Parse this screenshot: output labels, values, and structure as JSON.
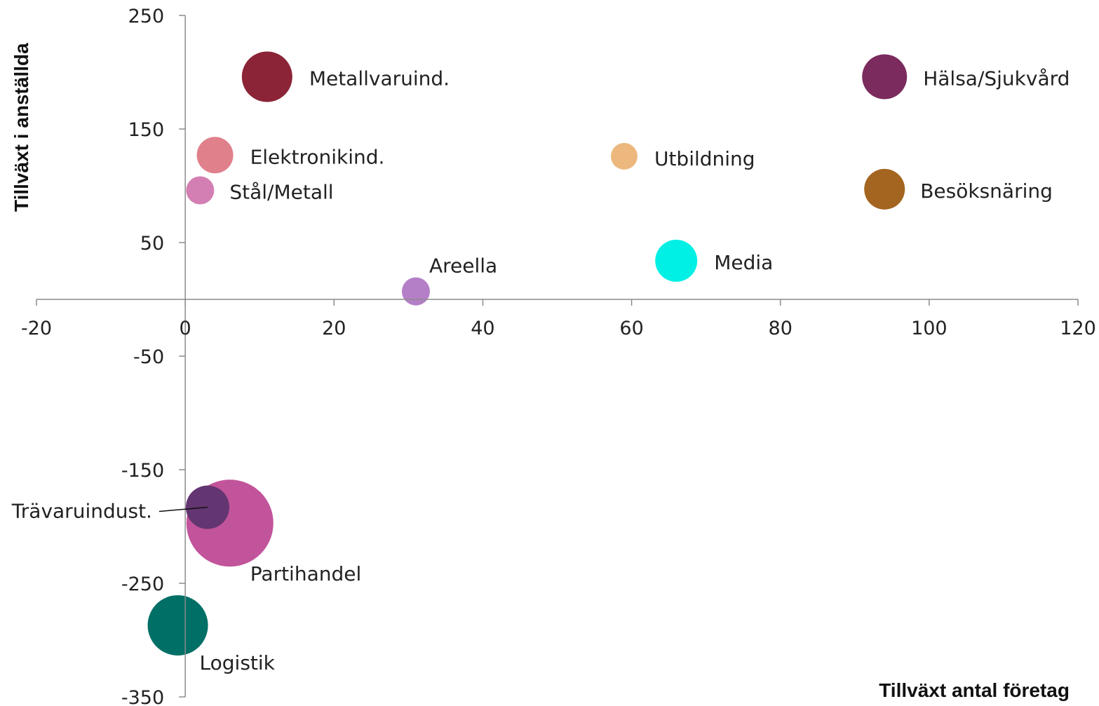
{
  "chart_data": {
    "type": "bubble",
    "xlabel": "Tillväxt antal företag",
    "ylabel": "Tillväxt i anställda",
    "xlim": [
      -20,
      120
    ],
    "ylim": [
      -350,
      250
    ],
    "xticks": [
      -20,
      0,
      20,
      40,
      60,
      80,
      100,
      120
    ],
    "yticks": [
      250,
      150,
      50,
      -50,
      -150,
      -250,
      -350
    ],
    "grid": false,
    "legend": "none",
    "points": [
      {
        "label": "Metallvaruind.",
        "x": 11,
        "y": 196,
        "size": 36,
        "color": "#8b2436"
      },
      {
        "label": "Hälsa/Sjukvård",
        "x": 94,
        "y": 196,
        "size": 32,
        "color": "#7b2b5d"
      },
      {
        "label": "Elektronikind.",
        "x": 4,
        "y": 127,
        "size": 26,
        "color": "#df808b"
      },
      {
        "label": "Utbildning",
        "x": 59,
        "y": 126,
        "size": 19,
        "color": "#ecb87e"
      },
      {
        "label": "Stål/Metall",
        "x": 2,
        "y": 96,
        "size": 20,
        "color": "#d47fb3"
      },
      {
        "label": "Besöksnäring",
        "x": 94,
        "y": 97,
        "size": 29,
        "color": "#a3651f"
      },
      {
        "label": "Media",
        "x": 66,
        "y": 34,
        "size": 30,
        "color": "#00f0e6"
      },
      {
        "label": "Areella",
        "x": 31,
        "y": 7,
        "size": 20,
        "color": "#b47fc7"
      },
      {
        "label": "Partihandel",
        "x": 6,
        "y": -197,
        "size": 62,
        "color": "#c2549b"
      },
      {
        "label": "Trävaruindust.",
        "x": 3,
        "y": -183,
        "size": 31,
        "color": "#633571"
      },
      {
        "label": "Logistik",
        "x": -1,
        "y": -287,
        "size": 43,
        "color": "#006f66"
      }
    ]
  }
}
